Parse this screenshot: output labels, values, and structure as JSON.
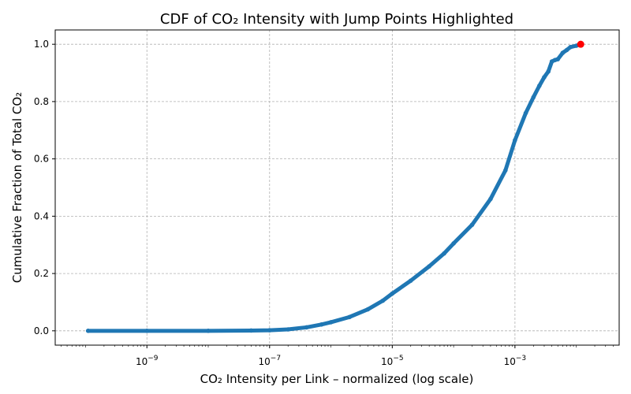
{
  "chart_data": {
    "type": "scatter",
    "title": "CDF of CO₂ Intensity with Jump Points Highlighted",
    "xlabel": "CO₂ Intensity per Link – normalized (log scale)",
    "ylabel": "Cumulative Fraction of Total CO₂",
    "x_scale": "log",
    "xlim": [
      3.2e-11,
      0.05
    ],
    "ylim": [
      -0.05,
      1.05
    ],
    "x_ticks": [
      {
        "value": 1e-09,
        "base": "10",
        "exp": "−9"
      },
      {
        "value": 1e-07,
        "base": "10",
        "exp": "−7"
      },
      {
        "value": 1e-05,
        "base": "10",
        "exp": "−5"
      },
      {
        "value": 0.001,
        "base": "10",
        "exp": "−3"
      }
    ],
    "y_ticks": [
      "0.0",
      "0.2",
      "0.4",
      "0.6",
      "0.8",
      "1.0"
    ],
    "grid": true,
    "series": [
      {
        "color": "#1f77b4",
        "style": "line-with-markers",
        "points": [
          [
            1.1e-10,
            0.0
          ],
          [
            1e-09,
            0.0
          ],
          [
            1e-08,
            0.0
          ],
          [
            5e-08,
            0.001
          ],
          [
            1e-07,
            0.002
          ],
          [
            2e-07,
            0.005
          ],
          [
            4e-07,
            0.012
          ],
          [
            7e-07,
            0.022
          ],
          [
            1e-06,
            0.03
          ],
          [
            2e-06,
            0.048
          ],
          [
            4e-06,
            0.075
          ],
          [
            7e-06,
            0.105
          ],
          [
            1e-05,
            0.13
          ],
          [
            2e-05,
            0.175
          ],
          [
            4e-05,
            0.225
          ],
          [
            7e-05,
            0.27
          ],
          [
            0.0001,
            0.305
          ],
          [
            0.0002,
            0.37
          ],
          [
            0.0004,
            0.46
          ],
          [
            0.0007,
            0.56
          ],
          [
            0.001,
            0.665
          ],
          [
            0.0015,
            0.76
          ],
          [
            0.002,
            0.815
          ],
          [
            0.0025,
            0.855
          ],
          [
            0.003,
            0.885
          ],
          [
            0.0035,
            0.905
          ],
          [
            0.004,
            0.94
          ],
          [
            0.0045,
            0.945
          ],
          [
            0.005,
            0.948
          ],
          [
            0.006,
            0.97
          ],
          [
            0.007,
            0.98
          ],
          [
            0.008,
            0.99
          ],
          [
            0.01,
            0.995
          ],
          [
            0.0118,
            1.0
          ]
        ]
      }
    ],
    "jump_points": [
      {
        "x": 0.0118,
        "y": 1.0,
        "color": "#ff0000"
      }
    ]
  }
}
